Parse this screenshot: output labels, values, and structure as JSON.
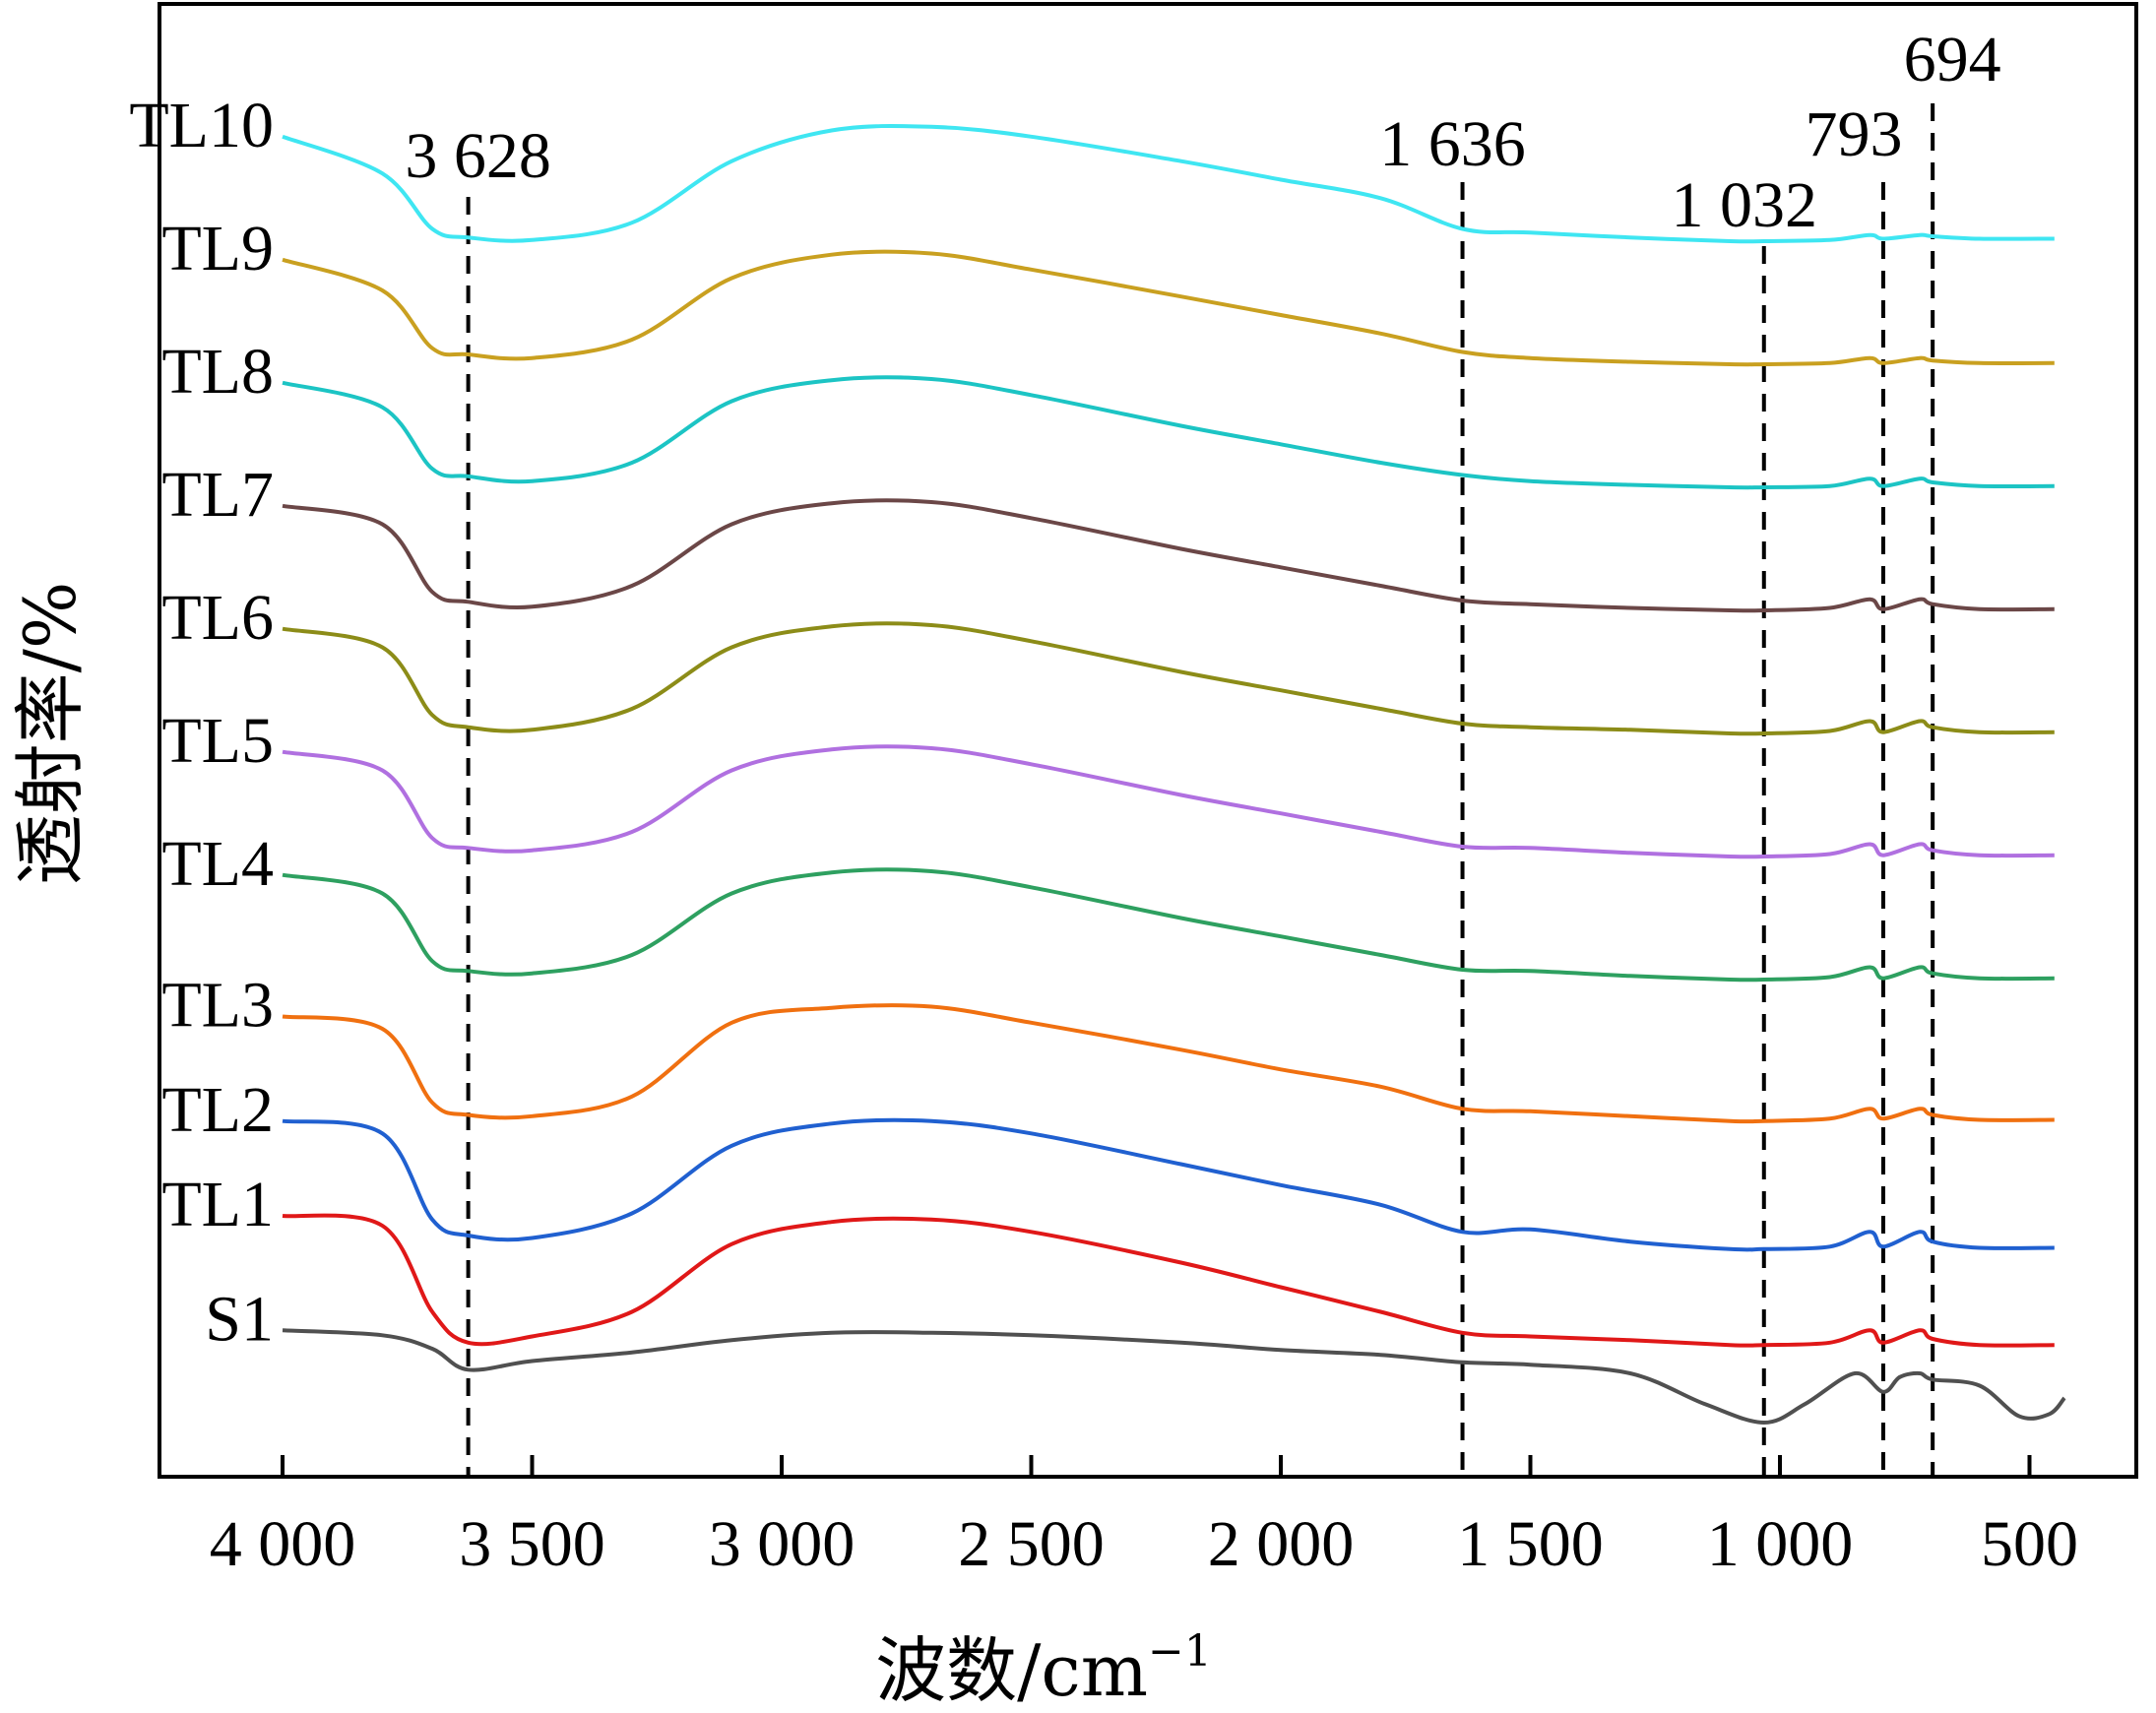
{
  "chart_data": {
    "type": "line",
    "title": "",
    "xlabel": "波数/cm",
    "xlabel_sup": "−1",
    "ylabel": "透射率/%",
    "xlim": [
      4250,
      380
    ],
    "x_reversed": true,
    "x_ticks": [
      4000,
      3500,
      3000,
      2500,
      2000,
      1500,
      1000,
      500
    ],
    "x_tick_labels": [
      "4 000",
      "3 500",
      "3 000",
      "2 500",
      "2 000",
      "1 500",
      "1 000",
      "500"
    ],
    "y_ticks_shown": false,
    "grid": false,
    "legend": "labels at left end of each curve",
    "peak_markers": [
      {
        "x": 3628,
        "label": "3 628"
      },
      {
        "x": 1636,
        "label": "1 636"
      },
      {
        "x": 1032,
        "label": "1 032"
      },
      {
        "x": 793,
        "label": "793"
      },
      {
        "x": 694,
        "label": "694"
      }
    ],
    "series": [
      {
        "name": "TL10",
        "color": "#3fe6f2",
        "offset": 11.7,
        "points": [
          [
            4000,
            11.7
          ],
          [
            3800,
            11.4
          ],
          [
            3700,
            10.95
          ],
          [
            3628,
            10.88
          ],
          [
            3500,
            10.86
          ],
          [
            3300,
            11.0
          ],
          [
            3100,
            11.5
          ],
          [
            2900,
            11.75
          ],
          [
            2700,
            11.78
          ],
          [
            2500,
            11.7
          ],
          [
            2200,
            11.5
          ],
          [
            2000,
            11.35
          ],
          [
            1800,
            11.2
          ],
          [
            1636,
            10.95
          ],
          [
            1500,
            10.92
          ],
          [
            1300,
            10.88
          ],
          [
            1100,
            10.85
          ],
          [
            1032,
            10.85
          ],
          [
            900,
            10.86
          ],
          [
            820,
            10.9
          ],
          [
            793,
            10.87
          ],
          [
            720,
            10.9
          ],
          [
            694,
            10.89
          ],
          [
            600,
            10.87
          ],
          [
            450,
            10.87
          ]
        ]
      },
      {
        "name": "TL9",
        "color": "#c9a020",
        "offset": 10.7,
        "points": [
          [
            4000,
            10.7
          ],
          [
            3800,
            10.45
          ],
          [
            3700,
            9.98
          ],
          [
            3628,
            9.93
          ],
          [
            3500,
            9.9
          ],
          [
            3300,
            10.05
          ],
          [
            3100,
            10.55
          ],
          [
            2900,
            10.74
          ],
          [
            2700,
            10.75
          ],
          [
            2500,
            10.62
          ],
          [
            2200,
            10.4
          ],
          [
            2000,
            10.25
          ],
          [
            1800,
            10.1
          ],
          [
            1636,
            9.95
          ],
          [
            1500,
            9.9
          ],
          [
            1300,
            9.87
          ],
          [
            1100,
            9.85
          ],
          [
            1032,
            9.85
          ],
          [
            900,
            9.86
          ],
          [
            820,
            9.9
          ],
          [
            793,
            9.86
          ],
          [
            720,
            9.9
          ],
          [
            694,
            9.88
          ],
          [
            600,
            9.86
          ],
          [
            450,
            9.86
          ]
        ]
      },
      {
        "name": "TL8",
        "color": "#1cc4c4",
        "offset": 9.7,
        "points": [
          [
            4000,
            9.7
          ],
          [
            3800,
            9.5
          ],
          [
            3700,
            9.0
          ],
          [
            3628,
            8.94
          ],
          [
            3500,
            8.9
          ],
          [
            3300,
            9.05
          ],
          [
            3100,
            9.55
          ],
          [
            2900,
            9.72
          ],
          [
            2700,
            9.73
          ],
          [
            2500,
            9.6
          ],
          [
            2200,
            9.35
          ],
          [
            2000,
            9.2
          ],
          [
            1800,
            9.05
          ],
          [
            1636,
            8.95
          ],
          [
            1500,
            8.9
          ],
          [
            1300,
            8.87
          ],
          [
            1100,
            8.85
          ],
          [
            1032,
            8.85
          ],
          [
            900,
            8.86
          ],
          [
            820,
            8.92
          ],
          [
            793,
            8.86
          ],
          [
            720,
            8.92
          ],
          [
            694,
            8.89
          ],
          [
            600,
            8.86
          ],
          [
            450,
            8.86
          ]
        ]
      },
      {
        "name": "TL7",
        "color": "#6b4747",
        "offset": 8.7,
        "points": [
          [
            4000,
            8.7
          ],
          [
            3800,
            8.55
          ],
          [
            3700,
            8.0
          ],
          [
            3628,
            7.92
          ],
          [
            3500,
            7.88
          ],
          [
            3300,
            8.05
          ],
          [
            3100,
            8.55
          ],
          [
            2900,
            8.72
          ],
          [
            2700,
            8.73
          ],
          [
            2500,
            8.6
          ],
          [
            2200,
            8.35
          ],
          [
            2000,
            8.2
          ],
          [
            1800,
            8.05
          ],
          [
            1636,
            7.93
          ],
          [
            1500,
            7.9
          ],
          [
            1300,
            7.87
          ],
          [
            1100,
            7.85
          ],
          [
            1032,
            7.85
          ],
          [
            900,
            7.87
          ],
          [
            820,
            7.94
          ],
          [
            793,
            7.86
          ],
          [
            720,
            7.94
          ],
          [
            694,
            7.9
          ],
          [
            600,
            7.86
          ],
          [
            450,
            7.86
          ]
        ]
      },
      {
        "name": "TL6",
        "color": "#8c8c18",
        "offset": 7.7,
        "points": [
          [
            4000,
            7.7
          ],
          [
            3800,
            7.55
          ],
          [
            3700,
            7.0
          ],
          [
            3628,
            6.9
          ],
          [
            3500,
            6.88
          ],
          [
            3300,
            7.05
          ],
          [
            3100,
            7.55
          ],
          [
            2900,
            7.72
          ],
          [
            2700,
            7.73
          ],
          [
            2500,
            7.6
          ],
          [
            2200,
            7.35
          ],
          [
            2000,
            7.2
          ],
          [
            1800,
            7.05
          ],
          [
            1636,
            6.93
          ],
          [
            1500,
            6.9
          ],
          [
            1300,
            6.88
          ],
          [
            1100,
            6.85
          ],
          [
            1032,
            6.85
          ],
          [
            900,
            6.87
          ],
          [
            820,
            6.95
          ],
          [
            793,
            6.86
          ],
          [
            720,
            6.95
          ],
          [
            694,
            6.9
          ],
          [
            600,
            6.86
          ],
          [
            450,
            6.86
          ]
        ]
      },
      {
        "name": "TL5",
        "color": "#b070e0",
        "offset": 6.7,
        "points": [
          [
            4000,
            6.7
          ],
          [
            3800,
            6.55
          ],
          [
            3700,
            6.0
          ],
          [
            3628,
            5.92
          ],
          [
            3500,
            5.9
          ],
          [
            3300,
            6.05
          ],
          [
            3100,
            6.55
          ],
          [
            2900,
            6.72
          ],
          [
            2700,
            6.73
          ],
          [
            2500,
            6.6
          ],
          [
            2200,
            6.35
          ],
          [
            2000,
            6.2
          ],
          [
            1800,
            6.05
          ],
          [
            1636,
            5.93
          ],
          [
            1500,
            5.92
          ],
          [
            1300,
            5.88
          ],
          [
            1100,
            5.85
          ],
          [
            1032,
            5.85
          ],
          [
            900,
            5.87
          ],
          [
            820,
            5.95
          ],
          [
            793,
            5.86
          ],
          [
            720,
            5.95
          ],
          [
            694,
            5.9
          ],
          [
            600,
            5.86
          ],
          [
            450,
            5.86
          ]
        ]
      },
      {
        "name": "TL4",
        "color": "#2ea060",
        "offset": 5.7,
        "points": [
          [
            4000,
            5.7
          ],
          [
            3800,
            5.55
          ],
          [
            3700,
            5.0
          ],
          [
            3628,
            4.92
          ],
          [
            3500,
            4.9
          ],
          [
            3300,
            5.05
          ],
          [
            3100,
            5.55
          ],
          [
            2900,
            5.72
          ],
          [
            2700,
            5.73
          ],
          [
            2500,
            5.6
          ],
          [
            2200,
            5.35
          ],
          [
            2000,
            5.2
          ],
          [
            1800,
            5.05
          ],
          [
            1636,
            4.93
          ],
          [
            1500,
            4.92
          ],
          [
            1300,
            4.88
          ],
          [
            1100,
            4.85
          ],
          [
            1032,
            4.85
          ],
          [
            900,
            4.87
          ],
          [
            820,
            4.95
          ],
          [
            793,
            4.86
          ],
          [
            720,
            4.95
          ],
          [
            694,
            4.9
          ],
          [
            600,
            4.86
          ],
          [
            450,
            4.86
          ]
        ]
      },
      {
        "name": "TL3",
        "color": "#f07010",
        "offset": 4.7,
        "points": [
          [
            4000,
            4.55
          ],
          [
            3800,
            4.45
          ],
          [
            3700,
            3.85
          ],
          [
            3628,
            3.75
          ],
          [
            3500,
            3.74
          ],
          [
            3300,
            3.9
          ],
          [
            3100,
            4.5
          ],
          [
            2900,
            4.62
          ],
          [
            2700,
            4.63
          ],
          [
            2500,
            4.5
          ],
          [
            2200,
            4.28
          ],
          [
            2000,
            4.12
          ],
          [
            1800,
            3.98
          ],
          [
            1636,
            3.8
          ],
          [
            1500,
            3.78
          ],
          [
            1300,
            3.74
          ],
          [
            1100,
            3.7
          ],
          [
            1032,
            3.7
          ],
          [
            900,
            3.72
          ],
          [
            820,
            3.8
          ],
          [
            793,
            3.72
          ],
          [
            720,
            3.8
          ],
          [
            694,
            3.75
          ],
          [
            600,
            3.71
          ],
          [
            450,
            3.71
          ]
        ]
      },
      {
        "name": "TL2",
        "color": "#2060d0",
        "offset": 3.7,
        "points": [
          [
            4000,
            3.7
          ],
          [
            3800,
            3.6
          ],
          [
            3700,
            2.9
          ],
          [
            3628,
            2.77
          ],
          [
            3500,
            2.75
          ],
          [
            3300,
            2.95
          ],
          [
            3100,
            3.5
          ],
          [
            2900,
            3.68
          ],
          [
            2700,
            3.7
          ],
          [
            2500,
            3.6
          ],
          [
            2200,
            3.35
          ],
          [
            2000,
            3.18
          ],
          [
            1800,
            3.02
          ],
          [
            1636,
            2.8
          ],
          [
            1500,
            2.82
          ],
          [
            1300,
            2.72
          ],
          [
            1100,
            2.66
          ],
          [
            1032,
            2.66
          ],
          [
            900,
            2.68
          ],
          [
            820,
            2.8
          ],
          [
            793,
            2.68
          ],
          [
            720,
            2.8
          ],
          [
            694,
            2.72
          ],
          [
            600,
            2.67
          ],
          [
            450,
            2.67
          ]
        ]
      },
      {
        "name": "TL1",
        "color": "#e01818",
        "offset": 2.7,
        "points": [
          [
            4000,
            2.93
          ],
          [
            3800,
            2.85
          ],
          [
            3700,
            2.15
          ],
          [
            3628,
            1.9
          ],
          [
            3500,
            1.95
          ],
          [
            3300,
            2.15
          ],
          [
            3100,
            2.7
          ],
          [
            2900,
            2.88
          ],
          [
            2700,
            2.9
          ],
          [
            2500,
            2.8
          ],
          [
            2200,
            2.55
          ],
          [
            2000,
            2.35
          ],
          [
            1800,
            2.15
          ],
          [
            1636,
            1.98
          ],
          [
            1500,
            1.95
          ],
          [
            1300,
            1.92
          ],
          [
            1100,
            1.88
          ],
          [
            1032,
            1.88
          ],
          [
            900,
            1.9
          ],
          [
            820,
            2.0
          ],
          [
            793,
            1.9
          ],
          [
            720,
            2.0
          ],
          [
            694,
            1.93
          ],
          [
            600,
            1.88
          ],
          [
            450,
            1.88
          ]
        ]
      },
      {
        "name": "S1",
        "color": "#505050",
        "offset": 1.7,
        "points": [
          [
            4000,
            2.0
          ],
          [
            3800,
            1.96
          ],
          [
            3700,
            1.85
          ],
          [
            3628,
            1.68
          ],
          [
            3500,
            1.75
          ],
          [
            3300,
            1.82
          ],
          [
            3100,
            1.92
          ],
          [
            2900,
            1.98
          ],
          [
            2700,
            1.98
          ],
          [
            2500,
            1.96
          ],
          [
            2200,
            1.9
          ],
          [
            2000,
            1.84
          ],
          [
            1800,
            1.8
          ],
          [
            1636,
            1.74
          ],
          [
            1500,
            1.72
          ],
          [
            1300,
            1.65
          ],
          [
            1150,
            1.4
          ],
          [
            1032,
            1.25
          ],
          [
            950,
            1.4
          ],
          [
            850,
            1.65
          ],
          [
            793,
            1.5
          ],
          [
            760,
            1.62
          ],
          [
            720,
            1.65
          ],
          [
            694,
            1.6
          ],
          [
            600,
            1.55
          ],
          [
            520,
            1.3
          ],
          [
            460,
            1.32
          ],
          [
            430,
            1.45
          ]
        ]
      }
    ]
  }
}
